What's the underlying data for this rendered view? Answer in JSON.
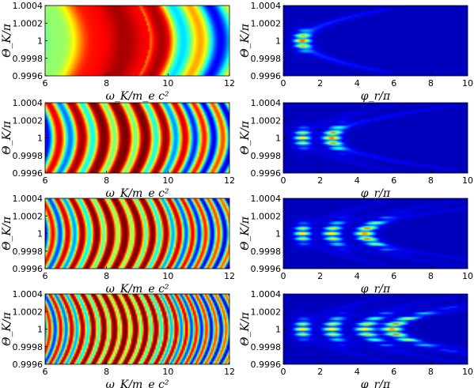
{
  "chart_data": [
    {
      "type": "heatmap",
      "panel": "left-1",
      "xlabel": "ω_K/m_e c²",
      "ylabel": "Θ_K/π",
      "xlim": [
        6,
        12
      ],
      "ylim": [
        0.9996,
        1.0004
      ],
      "xticks": [
        "6",
        "8",
        "10",
        "12"
      ],
      "yticks": [
        "1.0004",
        "1.0002",
        "1",
        "0.9998",
        "0.9996"
      ],
      "pattern": {
        "peak_omega": 8.6,
        "fringes": 4
      }
    },
    {
      "type": "heatmap",
      "panel": "right-1",
      "xlabel": "φ_r/π",
      "ylabel": "Θ_K/π",
      "xlim": [
        0,
        10
      ],
      "ylim": [
        0.9996,
        1.0004
      ],
      "xticks": [
        "0",
        "2",
        "4",
        "6",
        "8",
        "10"
      ],
      "yticks": [
        "1.0004",
        "1.0002",
        "1",
        "0.9998",
        "0.9996"
      ],
      "pattern": {
        "lobes": [
          1
        ]
      }
    },
    {
      "type": "heatmap",
      "panel": "left-2",
      "xlabel": "ω_K/m_e c²",
      "ylabel": "Θ_K/π",
      "xlim": [
        6,
        12
      ],
      "ylim": [
        0.9996,
        1.0004
      ],
      "xticks": [
        "6",
        "8",
        "10",
        "12"
      ],
      "yticks": [
        "1.0004",
        "1.0002",
        "1",
        "0.9998",
        "0.9996"
      ],
      "pattern": {
        "peak_omega": 8.6,
        "fringes": 8
      }
    },
    {
      "type": "heatmap",
      "panel": "right-2",
      "xlabel": "φ_r/π",
      "ylabel": "Θ_K/π",
      "xlim": [
        0,
        10
      ],
      "ylim": [
        0.9996,
        1.0004
      ],
      "xticks": [
        "0",
        "2",
        "4",
        "6",
        "8",
        "10"
      ],
      "yticks": [
        "1.0004",
        "1.0002",
        "1",
        "0.9998",
        "0.9996"
      ],
      "pattern": {
        "lobes": [
          1,
          2.6
        ]
      }
    },
    {
      "type": "heatmap",
      "panel": "left-3",
      "xlabel": "ω_K/m_e c²",
      "ylabel": "Θ_K/π",
      "xlim": [
        6,
        12
      ],
      "ylim": [
        0.9996,
        1.0004
      ],
      "xticks": [
        "6",
        "8",
        "10",
        "12"
      ],
      "yticks": [
        "1.0004",
        "1.0002",
        "1",
        "0.9998",
        "0.9996"
      ],
      "pattern": {
        "peak_omega": 8.6,
        "fringes": 12
      }
    },
    {
      "type": "heatmap",
      "panel": "right-3",
      "xlabel": "φ_r/π",
      "ylabel": "Θ_K/π",
      "xlim": [
        0,
        10
      ],
      "ylim": [
        0.9996,
        1.0004
      ],
      "xticks": [
        "0",
        "2",
        "4",
        "6",
        "8",
        "10"
      ],
      "yticks": [
        "1.0004",
        "1.0002",
        "1",
        "0.9998",
        "0.9996"
      ],
      "pattern": {
        "lobes": [
          1,
          2.6,
          4.4
        ]
      }
    },
    {
      "type": "heatmap",
      "panel": "left-4",
      "xlabel": "ω_K/m_e c²",
      "ylabel": "Θ_K/π",
      "xlim": [
        6,
        12
      ],
      "ylim": [
        0.9996,
        1.0004
      ],
      "xticks": [
        "6",
        "8",
        "10",
        "12"
      ],
      "yticks": [
        "1.0004",
        "1.0002",
        "1",
        "0.9998",
        "0.9996"
      ],
      "pattern": {
        "peak_omega": 8.6,
        "fringes": 16
      }
    },
    {
      "type": "heatmap",
      "panel": "right-4",
      "xlabel": "φ_r/π",
      "ylabel": "Θ_K/π",
      "xlim": [
        0,
        10
      ],
      "ylim": [
        0.9996,
        1.0004
      ],
      "xticks": [
        "0",
        "2",
        "4",
        "6",
        "8",
        "10"
      ],
      "yticks": [
        "1.0004",
        "1.0002",
        "1",
        "0.9998",
        "0.9996"
      ],
      "pattern": {
        "lobes": [
          1,
          2.6,
          4.4,
          5.9
        ]
      }
    }
  ],
  "colormap": [
    "#00008f",
    "#0000ff",
    "#00ffff",
    "#ffff00",
    "#ff0000",
    "#800000"
  ]
}
